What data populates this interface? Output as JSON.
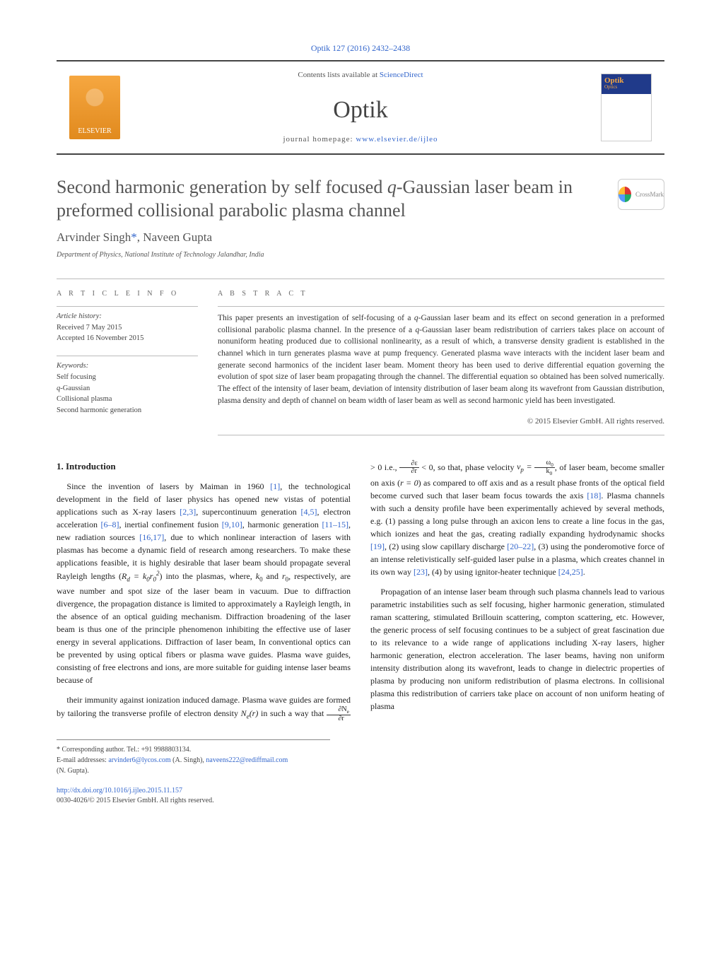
{
  "journal_ref": "Optik 127 (2016) 2432–2438",
  "header": {
    "contents_pre": "Contents lists available at ",
    "contents_link": "ScienceDirect",
    "journal_title": "Optik",
    "homepage_pre": "journal homepage: ",
    "homepage_link": "www.elsevier.de/ijleo",
    "elsevier": "ELSEVIER",
    "cover_title": "Optik",
    "cover_sub": "Optics"
  },
  "title_pre": "Second harmonic generation by self focused ",
  "title_q": "q",
  "title_post": "-Gaussian laser beam in preformed collisional parabolic plasma channel",
  "crossmark": "CrossMark",
  "authors_text": "Arvinder Singh",
  "authors_star": "*",
  "authors_text2": ", Naveen Gupta",
  "affiliation": "Department of Physics, National Institute of Technology Jalandhar, India",
  "info": {
    "head": "A R T I C L E   I N F O",
    "history_label": "Article history:",
    "received": "Received 7 May 2015",
    "accepted": "Accepted 16 November 2015",
    "keywords_label": "Keywords:",
    "kw1": "Self focusing",
    "kw2_q": "q",
    "kw2_post": "-Gaussian",
    "kw3": "Collisional plasma",
    "kw4": "Second harmonic generation"
  },
  "abstract": {
    "head": "A B S T R A C T",
    "text_pre": "This paper presents an investigation of self-focusing of a ",
    "q1": "q",
    "text_mid": "-Gaussian laser beam and its effect on second generation in a preformed collisional parabolic plasma channel. In the presence of a ",
    "q2": "q",
    "text_post": "-Gaussian laser beam redistribution of carriers takes place on account of nonuniform heating produced due to collisional nonlinearity, as a result of which, a transverse density gradient is established in the channel which in turn generates plasma wave at pump frequency. Generated plasma wave interacts with the incident laser beam and generate second harmonics of the incident laser beam. Moment theory has been used to derive differential equation governing the evolution of spot size of laser beam propagating through the channel. The differential equation so obtained has been solved numerically. The effect of the intensity of laser beam, deviation of intensity distribution of laser beam along its wavefront from Gaussian distribution, plasma density and depth of channel on beam width of laser beam as well as second harmonic yield has been investigated.",
    "copyright": "© 2015 Elsevier GmbH. All rights reserved."
  },
  "body": {
    "sec_num": "1.",
    "sec_title": "Introduction",
    "p1_a": "Since the invention of lasers by Maiman in 1960 ",
    "r1": "[1]",
    "p1_b": ", the technological development in the field of laser physics has opened new vistas of potential applications such as X-ray lasers ",
    "r2": "[2,3]",
    "p1_c": ", supercontinuum generation ",
    "r3": "[4,5]",
    "p1_d": ", electron acceleration ",
    "r4": "[6–8]",
    "p1_e": ", inertial confinement fusion ",
    "r5": "[9,10]",
    "p1_f": ", harmonic generation ",
    "r6": "[11–15]",
    "p1_g": ", new radiation sources ",
    "r7": "[16,17]",
    "p1_h": ", due to which nonlinear interaction of lasers with plasmas has become a dynamic field of research among researchers. To make these applications feasible, it is highly desirable that laser beam should propagate several Rayleigh lengths (",
    "p1_formula": "R_d = k_0 r_0^2",
    "p1_i": ") into the plasmas, where, ",
    "p1_k0": "k",
    "p1_k0sub": "0",
    "p1_j": " and ",
    "p1_r0": "r",
    "p1_r0sub": "0",
    "p1_k": ", respectively, are wave number and spot size of the laser beam in vacuum. Due to diffraction divergence, the propagation distance is limited to approximately a Rayleigh length, in the absence of an optical guiding mechanism. Diffraction broadening of the laser beam is thus one of the principle phenomenon inhibiting the effective use of laser energy in several applications. Diffraction of laser beam, In conventional optics can be prevented by using optical fibers or plasma wave guides. Plasma wave guides, consisting of free electrons and ions, are more suitable for guiding intense laser beams because of",
    "p2_a": "their immunity against ionization induced damage. Plasma wave guides are formed by tailoring the transverse profile of electron density ",
    "p2_Ne": "N_e(r)",
    "p2_b": " in such a way that ",
    "p2_c": " > 0 i.e., ",
    "p2_d": " < 0, so that, phase velocity ",
    "p2_vp": "v_p = ",
    "p2_e": ", of laser beam, become smaller on axis (",
    "p2_r0": "r = 0",
    "p2_f": ") as compared to off axis and as a result phase fronts of the optical field become curved such that laser beam focus towards the axis ",
    "r18": "[18]",
    "p2_g": ". Plasma channels with such a density profile have been experimentally achieved by several methods, e.g. (1) passing a long pulse through an axicon lens to create a line focus in the gas, which ionizes and heat the gas, creating radially expanding hydrodynamic shocks ",
    "r19": "[19]",
    "p2_h": ", (2) using slow capillary discharge ",
    "r20": "[20–22]",
    "p2_i": ", (3) using the ponderomotive force of an intense reletivistically self-guided laser pulse in a plasma, which creates channel in its own way ",
    "r23": "[23]",
    "p2_j": ", (4) by using ignitor-heater technique ",
    "r24": "[24,25]",
    "p2_k": ".",
    "p3": "Propagation of an intense laser beam through such plasma channels lead to various parametric instabilities such as self focusing, higher harmonic generation, stimulated raman scattering, stimulated Brillouin scattering, compton scattering, etc. However, the generic process of self focusing continues to be a subject of great fascination due to its relevance to a wide range of applications including X-ray lasers, higher harmonic generation, electron acceleration. The laser beams, having non uniform intensity distribution along its wavefront, leads to change in dielectric properties of plasma by producing non uniform redistribution of plasma electrons. In collisional plasma this redistribution of carriers take place on account of non uniform heating of plasma"
  },
  "footnotes": {
    "corr": "* Corresponding author. Tel.: +91 9988803134.",
    "email_label": "E-mail addresses:",
    "email1": "arvinder6@lycos.com",
    "email1_who": " (A. Singh), ",
    "email2": "naveens222@rediffmail.com",
    "email2_who": "(N. Gupta)."
  },
  "doi": {
    "link": "http://dx.doi.org/10.1016/j.ijleo.2015.11.157",
    "issn": "0030-4026/© 2015 Elsevier GmbH. All rights reserved."
  },
  "colors": {
    "link": "#3366cc",
    "text": "#333333",
    "muted": "#555555",
    "rule": "#bbbbbb",
    "elsevier_orange": "#e88c1f"
  }
}
